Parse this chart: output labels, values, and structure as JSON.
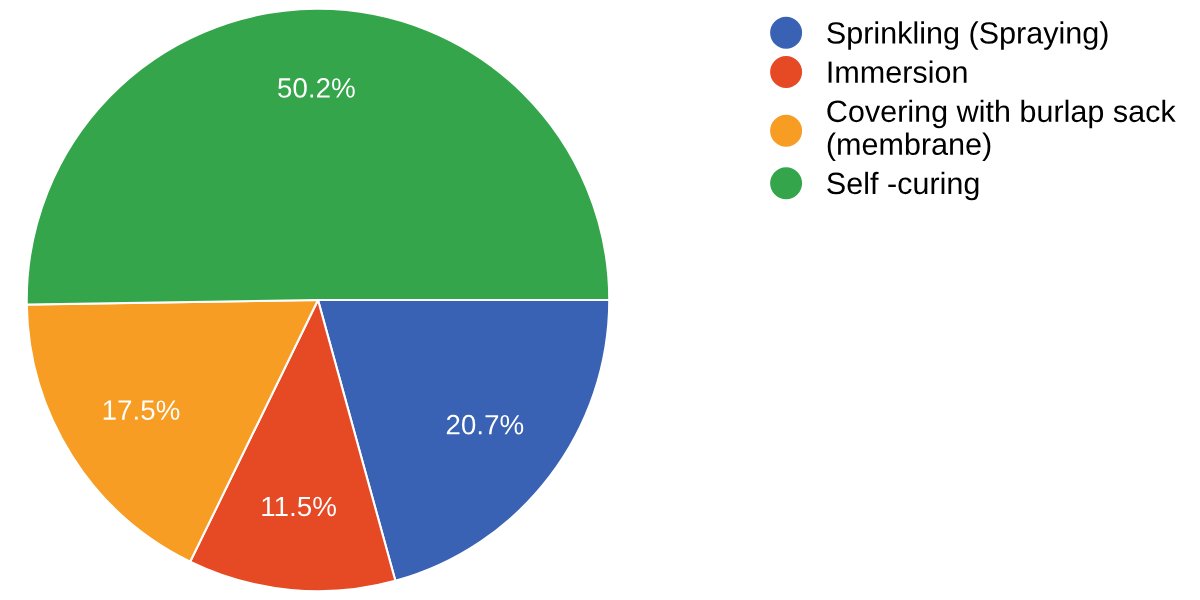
{
  "chart_data": {
    "type": "pie",
    "categories": [
      "Sprinkling (Spraying)",
      "Immersion",
      "Covering with burlap sack\n(membrane)",
      "Self -curing"
    ],
    "values": [
      20.7,
      11.5,
      17.5,
      50.2
    ],
    "value_labels": [
      "20.7%",
      "11.5%",
      "17.5%",
      "50.2%"
    ],
    "colors": [
      "#3a62b4",
      "#e64a25",
      "#f79d24",
      "#34a54a"
    ],
    "legend": "top right"
  }
}
